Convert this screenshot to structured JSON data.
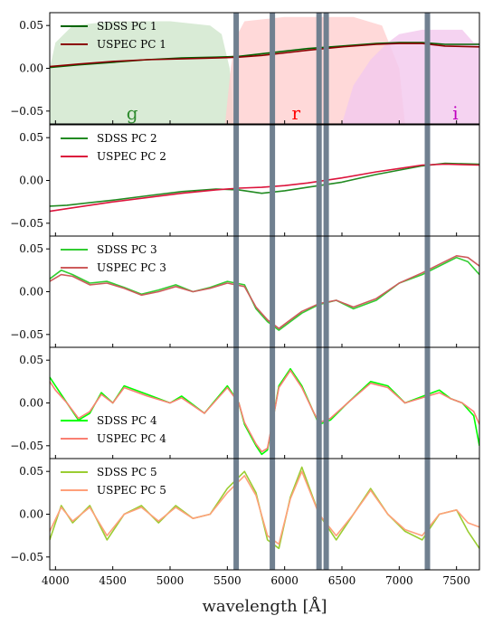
{
  "chart_data": {
    "type": "line",
    "xlabel": "wavelength [Å]",
    "xlim": [
      3950,
      7700
    ],
    "x_ticks": [
      "4000",
      "4500",
      "5000",
      "5500",
      "6000",
      "6500",
      "7000",
      "7500"
    ],
    "x_tick_values": [
      4000,
      4500,
      5000,
      5500,
      6000,
      6500,
      7000,
      7500
    ],
    "masked_wavelengths": [
      5577,
      5893,
      6300,
      6363,
      7246
    ],
    "mask_color": "#708090",
    "filter_bands": [
      {
        "label": "g",
        "color": "#2e8b2e",
        "fill": "#cfe6cc",
        "label_x": 4670,
        "points": [
          [
            3950,
            0.0
          ],
          [
            4000,
            0.03
          ],
          [
            4150,
            0.05
          ],
          [
            4500,
            0.055
          ],
          [
            5000,
            0.055
          ],
          [
            5350,
            0.05
          ],
          [
            5450,
            0.04
          ],
          [
            5520,
            0.0
          ],
          [
            5560,
            -0.065
          ]
        ]
      },
      {
        "label": "r",
        "color": "#ff0000",
        "fill": "#ffd0d0",
        "label_x": 6100,
        "points": [
          [
            5480,
            -0.065
          ],
          [
            5530,
            0.0
          ],
          [
            5570,
            0.035
          ],
          [
            5650,
            0.055
          ],
          [
            6000,
            0.06
          ],
          [
            6600,
            0.06
          ],
          [
            6850,
            0.05
          ],
          [
            7000,
            0.0
          ],
          [
            7050,
            -0.065
          ]
        ]
      },
      {
        "label": "i",
        "color": "#c000c0",
        "fill": "#f2c8ee",
        "label_x": 7490,
        "points": [
          [
            6500,
            -0.065
          ],
          [
            6600,
            -0.02
          ],
          [
            6750,
            0.01
          ],
          [
            6900,
            0.03
          ],
          [
            7000,
            0.04
          ],
          [
            7200,
            0.045
          ],
          [
            7550,
            0.045
          ],
          [
            7650,
            0.03
          ],
          [
            7700,
            0.03
          ]
        ]
      }
    ],
    "panels": [
      {
        "id": "pc1",
        "ylim": [
          -0.065,
          0.065
        ],
        "y_ticks": [
          "0.05",
          "0.00",
          "−0.05"
        ],
        "y_tick_values": [
          0.05,
          0.0,
          -0.05
        ],
        "series": [
          {
            "name": "SDSS PC 1",
            "color": "#006400",
            "x": [
              3950,
              4200,
              4500,
              4800,
              5100,
              5400,
              5600,
              5800,
              6000,
              6200,
              6500,
              6800,
              7000,
              7200,
              7400,
              7700
            ],
            "y": [
              0.001,
              0.004,
              0.007,
              0.01,
              0.012,
              0.013,
              0.014,
              0.017,
              0.02,
              0.023,
              0.026,
              0.029,
              0.03,
              0.03,
              0.028,
              0.028
            ]
          },
          {
            "name": "USPEC PC 1",
            "color": "#8b0000",
            "x": [
              3950,
              4200,
              4500,
              4800,
              5100,
              5400,
              5600,
              5800,
              6000,
              6200,
              6500,
              6800,
              7000,
              7200,
              7400,
              7700
            ],
            "y": [
              0.002,
              0.005,
              0.008,
              0.01,
              0.011,
              0.012,
              0.013,
              0.015,
              0.018,
              0.021,
              0.025,
              0.028,
              0.029,
              0.029,
              0.026,
              0.025
            ]
          }
        ]
      },
      {
        "id": "pc2",
        "ylim": [
          -0.065,
          0.065
        ],
        "y_ticks": [
          "0.05",
          "0.00",
          "−0.05"
        ],
        "y_tick_values": [
          0.05,
          0.0,
          -0.05
        ],
        "series": [
          {
            "name": "SDSS PC 2",
            "color": "#228b22",
            "x": [
              3950,
              4100,
              4300,
              4500,
              4800,
              5100,
              5400,
              5600,
              5800,
              6000,
              6200,
              6500,
              6800,
              7000,
              7200,
              7400,
              7700
            ],
            "y": [
              -0.03,
              -0.029,
              -0.026,
              -0.023,
              -0.018,
              -0.013,
              -0.01,
              -0.011,
              -0.015,
              -0.012,
              -0.008,
              -0.002,
              0.007,
              0.012,
              0.017,
              0.02,
              0.019
            ]
          },
          {
            "name": "USPEC PC 2",
            "color": "#dc143c",
            "x": [
              3950,
              4100,
              4300,
              4500,
              4800,
              5100,
              5400,
              5600,
              5800,
              6000,
              6200,
              6500,
              6800,
              7000,
              7200,
              7400,
              7700
            ],
            "y": [
              -0.036,
              -0.033,
              -0.029,
              -0.025,
              -0.02,
              -0.015,
              -0.011,
              -0.009,
              -0.008,
              -0.006,
              -0.003,
              0.003,
              0.01,
              0.014,
              0.018,
              0.019,
              0.018
            ]
          }
        ]
      },
      {
        "id": "pc3",
        "ylim": [
          -0.065,
          0.065
        ],
        "y_ticks": [
          "0.05",
          "0.00",
          "−0.05"
        ],
        "y_tick_values": [
          0.05,
          0.0,
          -0.05
        ],
        "series": [
          {
            "name": "SDSS PC 3",
            "color": "#32cd32",
            "x": [
              3950,
              4050,
              4150,
              4300,
              4450,
              4600,
              4750,
              4900,
              5050,
              5200,
              5350,
              5500,
              5650,
              5750,
              5850,
              5950,
              6050,
              6150,
              6300,
              6450,
              6600,
              6800,
              7000,
              7200,
              7350,
              7500,
              7600,
              7700
            ],
            "y": [
              0.015,
              0.025,
              0.02,
              0.01,
              0.012,
              0.005,
              -0.003,
              0.002,
              0.008,
              0.0,
              0.005,
              0.012,
              0.008,
              -0.02,
              -0.035,
              -0.045,
              -0.035,
              -0.025,
              -0.015,
              -0.01,
              -0.02,
              -0.01,
              0.01,
              0.02,
              0.03,
              0.04,
              0.035,
              0.02
            ]
          },
          {
            "name": "USPEC PC 3",
            "color": "#cd5c5c",
            "x": [
              3950,
              4050,
              4150,
              4300,
              4450,
              4600,
              4750,
              4900,
              5050,
              5200,
              5350,
              5500,
              5650,
              5750,
              5850,
              5950,
              6050,
              6150,
              6300,
              6450,
              6600,
              6800,
              7000,
              7200,
              7350,
              7500,
              7600,
              7700
            ],
            "y": [
              0.012,
              0.02,
              0.018,
              0.008,
              0.01,
              0.004,
              -0.004,
              0.0,
              0.006,
              0.0,
              0.004,
              0.01,
              0.006,
              -0.018,
              -0.033,
              -0.043,
              -0.033,
              -0.023,
              -0.014,
              -0.01,
              -0.018,
              -0.008,
              0.01,
              0.022,
              0.032,
              0.042,
              0.04,
              0.03
            ]
          }
        ]
      },
      {
        "id": "pc4",
        "ylim": [
          -0.065,
          0.065
        ],
        "y_ticks": [
          "0.05",
          "0.00",
          "−0.05"
        ],
        "y_tick_values": [
          0.05,
          0.0,
          -0.05
        ],
        "series": [
          {
            "name": "SDSS PC 4",
            "color": "#00ff00",
            "x": [
              3950,
              4000,
              4100,
              4200,
              4300,
              4400,
              4500,
              4600,
              4800,
              5000,
              5100,
              5300,
              5500,
              5600,
              5650,
              5750,
              5800,
              5850,
              5950,
              6050,
              6150,
              6250,
              6300,
              6400,
              6550,
              6750,
              6900,
              7050,
              7250,
              7350,
              7450,
              7550,
              7650,
              7700
            ],
            "y": [
              0.03,
              0.02,
              0.0,
              -0.02,
              -0.012,
              0.012,
              0.0,
              0.02,
              0.01,
              0.0,
              0.008,
              -0.012,
              0.02,
              0.0,
              -0.025,
              -0.05,
              -0.06,
              -0.055,
              0.02,
              0.04,
              0.02,
              -0.01,
              -0.025,
              -0.02,
              0.0,
              0.025,
              0.02,
              0.0,
              0.01,
              0.015,
              0.005,
              0.0,
              -0.015,
              -0.05
            ]
          },
          {
            "name": "USPEC PC 4",
            "color": "#fa8072",
            "x": [
              3950,
              4000,
              4100,
              4200,
              4300,
              4400,
              4500,
              4600,
              4800,
              5000,
              5100,
              5300,
              5500,
              5600,
              5650,
              5750,
              5800,
              5850,
              5950,
              6050,
              6150,
              6250,
              6300,
              6400,
              6550,
              6750,
              6900,
              7050,
              7250,
              7350,
              7450,
              7550,
              7650,
              7700
            ],
            "y": [
              0.025,
              0.015,
              0.0,
              -0.018,
              -0.01,
              0.01,
              0.0,
              0.018,
              0.008,
              0.0,
              0.006,
              -0.012,
              0.018,
              0.0,
              -0.023,
              -0.048,
              -0.057,
              -0.053,
              0.018,
              0.038,
              0.018,
              -0.01,
              -0.023,
              -0.018,
              0.0,
              0.023,
              0.018,
              0.0,
              0.008,
              0.012,
              0.005,
              0.0,
              -0.01,
              -0.025
            ]
          }
        ]
      },
      {
        "id": "pc5",
        "ylim": [
          -0.065,
          0.065
        ],
        "y_ticks": [
          "0.05",
          "0.00",
          "−0.05"
        ],
        "y_tick_values": [
          0.05,
          0.0,
          -0.05
        ],
        "series": [
          {
            "name": "SDSS PC 5",
            "color": "#9acd32",
            "x": [
              3950,
              4050,
              4150,
              4300,
              4450,
              4600,
              4750,
              4900,
              5050,
              5200,
              5350,
              5500,
              5650,
              5750,
              5850,
              5950,
              6050,
              6150,
              6300,
              6450,
              6600,
              6750,
              6900,
              7050,
              7200,
              7350,
              7500,
              7600,
              7700
            ],
            "y": [
              -0.03,
              0.01,
              -0.01,
              0.01,
              -0.03,
              0.0,
              0.01,
              -0.01,
              0.01,
              -0.005,
              0.0,
              0.03,
              0.05,
              0.025,
              -0.03,
              -0.04,
              0.02,
              0.055,
              0.0,
              -0.03,
              0.0,
              0.03,
              0.0,
              -0.02,
              -0.03,
              0.0,
              0.005,
              -0.02,
              -0.04
            ]
          },
          {
            "name": "USPEC PC 5",
            "color": "#ffa07a",
            "x": [
              3950,
              4050,
              4150,
              4300,
              4450,
              4600,
              4750,
              4900,
              5050,
              5200,
              5350,
              5500,
              5650,
              5750,
              5850,
              5950,
              6050,
              6150,
              6300,
              6450,
              6600,
              6750,
              6900,
              7050,
              7200,
              7350,
              7500,
              7600,
              7700
            ],
            "y": [
              -0.02,
              0.008,
              -0.008,
              0.008,
              -0.025,
              0.0,
              0.008,
              -0.008,
              0.008,
              -0.005,
              0.0,
              0.025,
              0.045,
              0.022,
              -0.025,
              -0.035,
              0.018,
              0.05,
              0.0,
              -0.025,
              0.0,
              0.028,
              0.0,
              -0.018,
              -0.025,
              0.0,
              0.005,
              -0.01,
              -0.015
            ]
          }
        ]
      }
    ]
  }
}
